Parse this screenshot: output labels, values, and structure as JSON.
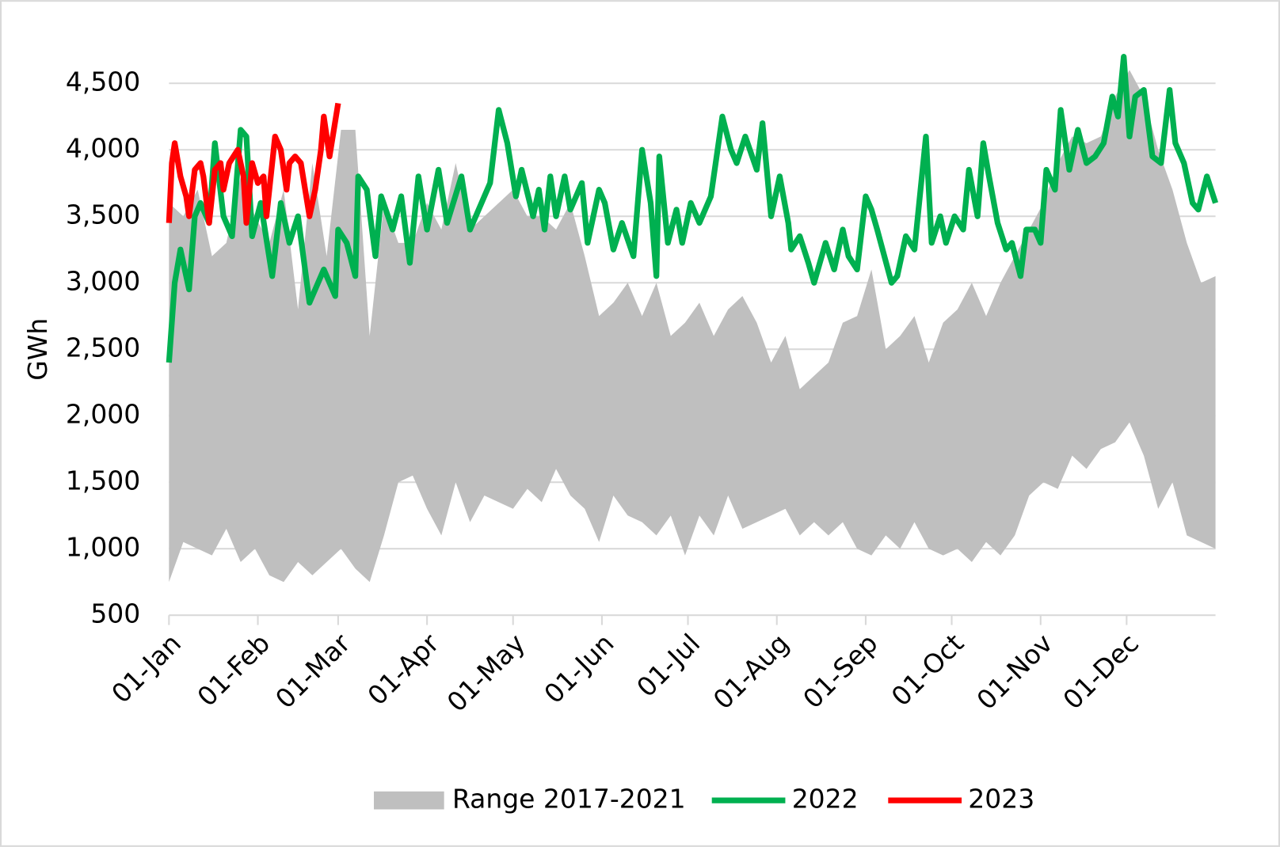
{
  "chart_data": {
    "type": "line",
    "ylabel": "GWh",
    "xlim": [
      0,
      365
    ],
    "xticks": [
      {
        "value": 0,
        "label": "01-Jan"
      },
      {
        "value": 31,
        "label": "01-Feb"
      },
      {
        "value": 59,
        "label": "01-Mar"
      },
      {
        "value": 90,
        "label": "01-Apr"
      },
      {
        "value": 120,
        "label": "01-May"
      },
      {
        "value": 151,
        "label": "01-Jun"
      },
      {
        "value": 181,
        "label": "01-Jul"
      },
      {
        "value": 212,
        "label": "01-Aug"
      },
      {
        "value": 243,
        "label": "01-Sep"
      },
      {
        "value": 273,
        "label": "01-Oct"
      },
      {
        "value": 304,
        "label": "01-Nov"
      },
      {
        "value": 334,
        "label": "01-Dec"
      }
    ],
    "ylim": [
      500,
      4500
    ],
    "yticks": [
      500,
      {
        "value": 1000,
        "label": "1,000"
      },
      {
        "value": 1500,
        "label": "1,500"
      },
      {
        "value": 2000,
        "label": "2,000"
      },
      {
        "value": 2500,
        "label": "2,500"
      },
      {
        "value": 3000,
        "label": "3,000"
      },
      {
        "value": 3500,
        "label": "3,500"
      },
      {
        "value": 4000,
        "label": "4,000"
      },
      {
        "value": 4500,
        "label": "4,500"
      }
    ],
    "grid": true,
    "legend": "bottom",
    "series": [
      {
        "name": "Range 2017-2021",
        "color": "#bfbfbf",
        "x": [
          0,
          5,
          10,
          15,
          20,
          25,
          30,
          35,
          40,
          45,
          50,
          55,
          60,
          65,
          70,
          75,
          80,
          85,
          90,
          95,
          100,
          105,
          110,
          115,
          120,
          125,
          130,
          135,
          140,
          145,
          150,
          155,
          160,
          165,
          170,
          175,
          180,
          185,
          190,
          195,
          200,
          205,
          210,
          215,
          220,
          225,
          230,
          235,
          240,
          245,
          250,
          255,
          260,
          265,
          270,
          275,
          280,
          285,
          290,
          295,
          300,
          305,
          310,
          315,
          320,
          325,
          330,
          335,
          340,
          345,
          350,
          355,
          360,
          365
        ],
        "high": [
          3600,
          3500,
          3700,
          3200,
          3300,
          3800,
          3500,
          3300,
          3700,
          2800,
          3900,
          3200,
          4150,
          4150,
          2600,
          3600,
          3300,
          3300,
          3600,
          3400,
          3900,
          3400,
          3500,
          3600,
          3700,
          3500,
          3500,
          3400,
          3600,
          3200,
          2750,
          2850,
          3000,
          2750,
          3000,
          2600,
          2700,
          2850,
          2600,
          2800,
          2900,
          2700,
          2400,
          2600,
          2200,
          2300,
          2400,
          2700,
          2750,
          3100,
          2500,
          2600,
          2750,
          2400,
          2700,
          2800,
          3000,
          2750,
          3000,
          3200,
          3400,
          3600,
          3900,
          4100,
          4050,
          4100,
          4400,
          4600,
          4400,
          4000,
          3700,
          3300,
          3000,
          3050
        ],
        "low": [
          750,
          1050,
          1000,
          950,
          1150,
          900,
          1000,
          800,
          750,
          900,
          800,
          900,
          1000,
          850,
          750,
          1100,
          1500,
          1550,
          1300,
          1100,
          1500,
          1200,
          1400,
          1350,
          1300,
          1450,
          1350,
          1600,
          1400,
          1300,
          1050,
          1400,
          1250,
          1200,
          1100,
          1250,
          950,
          1250,
          1100,
          1400,
          1150,
          1200,
          1250,
          1300,
          1100,
          1200,
          1100,
          1200,
          1000,
          950,
          1100,
          1000,
          1200,
          1000,
          950,
          1000,
          900,
          1050,
          950,
          1100,
          1400,
          1500,
          1450,
          1700,
          1600,
          1750,
          1800,
          1950,
          1700,
          1300,
          1500,
          1100,
          1050,
          1000
        ]
      },
      {
        "name": "2022",
        "color": "#00b050",
        "x": [
          0,
          2,
          4,
          7,
          9,
          11,
          14,
          16,
          19,
          22,
          25,
          27,
          29,
          32,
          36,
          39,
          42,
          45,
          49,
          54,
          58,
          59,
          62,
          65,
          66,
          69,
          72,
          74,
          78,
          81,
          84,
          87,
          90,
          94,
          97,
          102,
          105,
          109,
          112,
          115,
          118,
          121,
          123,
          127,
          129,
          131,
          133,
          135,
          138,
          140,
          144,
          146,
          150,
          152,
          155,
          158,
          162,
          165,
          168,
          170,
          171,
          174,
          177,
          179,
          182,
          185,
          189,
          193,
          196,
          198,
          201,
          205,
          207,
          210,
          213,
          216,
          217,
          220,
          223,
          225,
          229,
          232,
          235,
          237,
          240,
          243,
          245,
          247,
          252,
          254,
          257,
          260,
          264,
          266,
          269,
          271,
          274,
          277,
          279,
          282,
          284,
          286,
          289,
          292,
          294,
          297,
          299,
          302,
          304,
          306,
          309,
          311,
          314,
          317,
          320,
          323,
          326,
          329,
          331,
          333,
          335,
          337,
          340,
          343,
          346,
          349,
          351,
          354,
          357,
          359,
          362,
          365
        ],
        "values": [
          2400,
          3000,
          3250,
          2950,
          3500,
          3600,
          3450,
          4050,
          3500,
          3350,
          4150,
          4100,
          3350,
          3600,
          3050,
          3600,
          3300,
          3500,
          2850,
          3100,
          2900,
          3400,
          3300,
          3050,
          3800,
          3700,
          3200,
          3650,
          3400,
          3650,
          3150,
          3800,
          3400,
          3850,
          3450,
          3800,
          3400,
          3600,
          3750,
          4300,
          4050,
          3650,
          3850,
          3500,
          3700,
          3400,
          3800,
          3500,
          3800,
          3550,
          3750,
          3300,
          3700,
          3600,
          3250,
          3450,
          3200,
          4000,
          3600,
          3050,
          3950,
          3300,
          3550,
          3300,
          3600,
          3450,
          3650,
          4250,
          4000,
          3900,
          4100,
          3850,
          4200,
          3500,
          3800,
          3450,
          3250,
          3350,
          3150,
          3000,
          3300,
          3100,
          3400,
          3200,
          3100,
          3650,
          3550,
          3400,
          3000,
          3050,
          3350,
          3250,
          4100,
          3300,
          3500,
          3300,
          3500,
          3400,
          3850,
          3500,
          4050,
          3800,
          3450,
          3250,
          3300,
          3050,
          3400,
          3400,
          3300,
          3850,
          3700,
          4300,
          3850,
          4150,
          3900,
          3950,
          4050,
          4400,
          4250,
          4700,
          4100,
          4400,
          4450,
          3950,
          3900,
          4450,
          4050,
          3900,
          3600,
          3550,
          3800,
          3600
        ]
      },
      {
        "name": "2023",
        "color": "#ff0000",
        "x": [
          0,
          1,
          2,
          4,
          6,
          7,
          9,
          11,
          12,
          14,
          16,
          18,
          19,
          21,
          24,
          26,
          27,
          29,
          31,
          33,
          34,
          37,
          39,
          41,
          42,
          44,
          46,
          49,
          51,
          53,
          54,
          56,
          59
        ],
        "values": [
          3450,
          3900,
          4050,
          3800,
          3650,
          3500,
          3850,
          3900,
          3800,
          3450,
          3850,
          3900,
          3700,
          3900,
          4000,
          3800,
          3450,
          3900,
          3750,
          3800,
          3500,
          4100,
          4000,
          3700,
          3900,
          3950,
          3900,
          3500,
          3700,
          4000,
          4250,
          3950,
          4350
        ]
      }
    ]
  }
}
